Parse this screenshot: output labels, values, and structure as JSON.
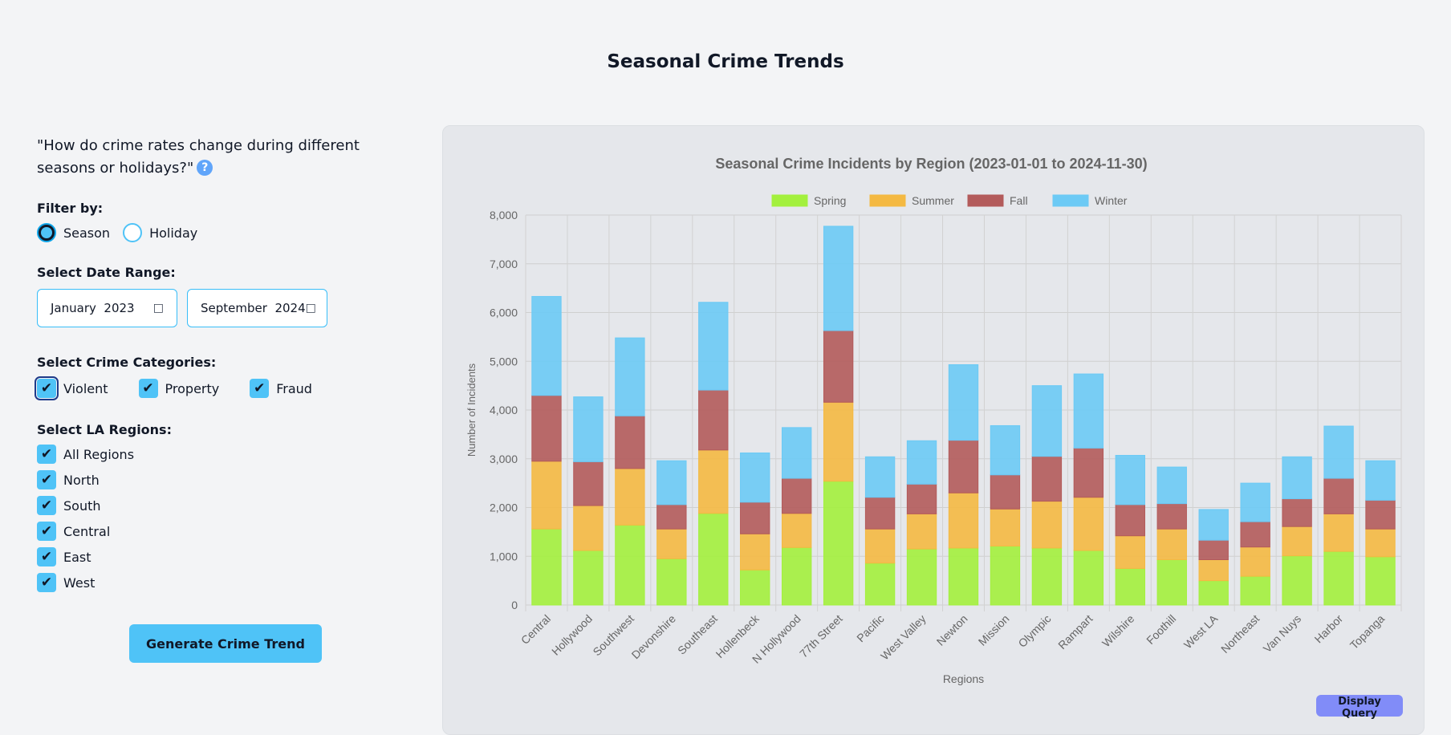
{
  "page": {
    "title": "Seasonal Crime Trends"
  },
  "question": {
    "text": "\"How do crime rates change during different seasons or holidays?\"",
    "help_icon": "?"
  },
  "filter": {
    "label": "Filter by:",
    "options": [
      {
        "label": "Season",
        "checked": true
      },
      {
        "label": "Holiday",
        "checked": false
      }
    ]
  },
  "date_range": {
    "label": "Select Date Range:",
    "start": "January  2023",
    "end": "September  2024"
  },
  "categories": {
    "label": "Select Crime Categories:",
    "items": [
      {
        "label": "Violent",
        "checked": true
      },
      {
        "label": "Property",
        "checked": true
      },
      {
        "label": "Fraud",
        "checked": true
      }
    ]
  },
  "regions": {
    "label": "Select LA Regions:",
    "items": [
      {
        "label": "All Regions",
        "checked": true
      },
      {
        "label": "North",
        "checked": true
      },
      {
        "label": "South",
        "checked": true
      },
      {
        "label": "Central",
        "checked": true
      },
      {
        "label": "East",
        "checked": true
      },
      {
        "label": "West",
        "checked": true
      }
    ]
  },
  "generate_button": {
    "label": "Generate Crime Trend"
  },
  "query_button": {
    "label": "Display Query"
  },
  "colors": {
    "spring": "#a3f03d",
    "summer": "#f4b942",
    "fall": "#b35b5b",
    "winter": "#6ccaf5",
    "accent": "#4fc3f7"
  },
  "chart_data": {
    "type": "bar",
    "stacked": true,
    "title": "Seasonal Crime Incidents by Region (2023-01-01 to 2024-11-30)",
    "xlabel": "Regions",
    "ylabel": "Number of Incidents",
    "ylim": [
      0,
      8000
    ],
    "yticks": [
      0,
      1000,
      2000,
      3000,
      4000,
      5000,
      6000,
      7000,
      8000
    ],
    "ytick_labels": [
      "0",
      "1,000",
      "2,000",
      "3,000",
      "4,000",
      "5,000",
      "6,000",
      "7,000",
      "8,000"
    ],
    "legend_position": "top-center",
    "categories": [
      "Central",
      "Hollywood",
      "Southwest",
      "Devonshire",
      "Southeast",
      "Hollenbeck",
      "N Hollywood",
      "77th Street",
      "Pacific",
      "West Valley",
      "Newton",
      "Mission",
      "Olympic",
      "Rampart",
      "Wilshire",
      "Foothill",
      "West LA",
      "Northeast",
      "Van Nuys",
      "Harbor",
      "Topanga"
    ],
    "series": [
      {
        "name": "Spring",
        "color": "#a3f03d",
        "values": [
          1560,
          1120,
          1640,
          950,
          1880,
          720,
          1180,
          2540,
          860,
          1150,
          1170,
          1210,
          1170,
          1120,
          750,
          930,
          500,
          590,
          1010,
          1100,
          990
        ]
      },
      {
        "name": "Summer",
        "color": "#f4b942",
        "values": [
          1390,
          920,
          1160,
          610,
          1300,
          740,
          700,
          1620,
          700,
          720,
          1130,
          760,
          960,
          1090,
          670,
          630,
          430,
          600,
          600,
          770,
          570
        ]
      },
      {
        "name": "Fall",
        "color": "#b35b5b",
        "values": [
          1350,
          900,
          1080,
          500,
          1230,
          650,
          720,
          1470,
          650,
          610,
          1080,
          700,
          920,
          1010,
          640,
          520,
          400,
          520,
          570,
          730,
          590
        ]
      },
      {
        "name": "Winter",
        "color": "#6ccaf5",
        "values": [
          2030,
          1330,
          1600,
          900,
          1800,
          1010,
          1040,
          2140,
          830,
          890,
          1550,
          1010,
          1450,
          1520,
          1010,
          750,
          630,
          790,
          860,
          1070,
          810
        ]
      }
    ]
  }
}
